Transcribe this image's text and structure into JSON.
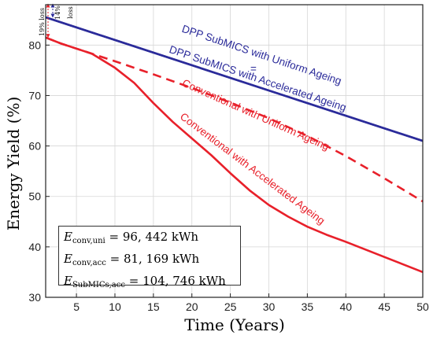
{
  "chart_data": {
    "type": "line",
    "xlabel": "Time (Years)",
    "ylabel": "Energy Yield (%)",
    "xlim": [
      1,
      50
    ],
    "ylim": [
      30,
      88
    ],
    "xticks": [
      5,
      10,
      15,
      20,
      25,
      30,
      35,
      40,
      45,
      50
    ],
    "yticks": [
      30,
      40,
      50,
      60,
      70,
      80
    ],
    "grid": true,
    "series": [
      {
        "name": "DPP SubMICS with Uniform Ageing",
        "color": "#2b2b9a",
        "style": "solid",
        "x": [
          1,
          50
        ],
        "y": [
          85.5,
          61
        ]
      },
      {
        "name": "DPP SubMICS with Accelerated Ageing",
        "color": "#2b2b9a",
        "style": "solid",
        "x": [
          1,
          50
        ],
        "y": [
          85.5,
          61
        ]
      },
      {
        "name": "Conventional with Uniform Ageing",
        "color": "#e8202a",
        "style": "dashed",
        "x": [
          1,
          3,
          5,
          7,
          10,
          15,
          20,
          25,
          30,
          35,
          40,
          45,
          50
        ],
        "y": [
          81.5,
          80.3,
          79.3,
          78.3,
          76.8,
          74.2,
          71.5,
          68.6,
          65.5,
          62.0,
          58.0,
          53.6,
          49.0
        ]
      },
      {
        "name": "Conventional with Accelerated Ageing",
        "color": "#e8202a",
        "style": "solid",
        "x": [
          1,
          3,
          5,
          7,
          10,
          12.5,
          15,
          17.5,
          20,
          22.5,
          25,
          27.5,
          30,
          32.5,
          35,
          37.5,
          40,
          42.5,
          45,
          47.5,
          50
        ],
        "y": [
          81.5,
          80.3,
          79.3,
          78.3,
          75.5,
          72.5,
          68.5,
          64.8,
          61.5,
          58.2,
          54.6,
          51.2,
          48.3,
          46.0,
          44.0,
          42.4,
          41.0,
          39.5,
          38.0,
          36.5,
          35.0
        ]
      }
    ],
    "annotations": {
      "loss_red": "19% loss",
      "loss_blue_pct": "14%",
      "loss_blue_word": "loss",
      "equals_sign": "="
    },
    "energy_box": [
      {
        "sub": "conv,uni",
        "value": "96, 442 kWh"
      },
      {
        "sub": "conv,acc",
        "value": "81, 169 kWh"
      },
      {
        "sub": "SubMICs,acc",
        "value": "104, 746 kWh"
      }
    ]
  }
}
